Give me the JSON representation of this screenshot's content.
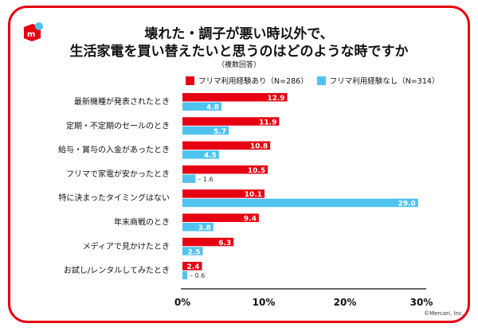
{
  "chart_data": {
    "type": "bar",
    "orientation": "horizontal",
    "title": "壊れた・調子が悪い時以外で、\n生活家電を買い替えたいと思うのはどのような時ですか",
    "title_lines": [
      "壊れた・調子が悪い時以外で、",
      "生活家電を買い替えたいと思うのはどのような時ですか"
    ],
    "subtitle": "（複数回答）",
    "categories": [
      "最新機種が発表されたとき",
      "定期・不定期のセールのとき",
      "給与・賞与の入金があったとき",
      "フリマで家電が安かったとき",
      "特に決まったタイミングはない",
      "年末商戦のとき",
      "メディアで見かけたとき",
      "お試し/レンタルしてみたとき"
    ],
    "series": [
      {
        "name": "フリマ利用経験あり（N=286）",
        "color": "#e60012",
        "values": [
          12.9,
          11.9,
          10.8,
          10.5,
          10.1,
          9.4,
          6.3,
          2.4
        ]
      },
      {
        "name": "フリマ利用経験なし（N=314）",
        "color": "#4fc3f0",
        "values": [
          4.8,
          5.7,
          4.5,
          1.6,
          29.0,
          3.8,
          2.5,
          0.6
        ]
      }
    ],
    "xlim": [
      0,
      30
    ],
    "xticks": [
      "0%",
      "10%",
      "20%",
      "30%"
    ],
    "grid": false,
    "legend_position": "top"
  },
  "footer": {
    "copyright": "©Mercari, Inc."
  },
  "brand": {
    "logo": "mercari",
    "accent": "#e60012"
  }
}
